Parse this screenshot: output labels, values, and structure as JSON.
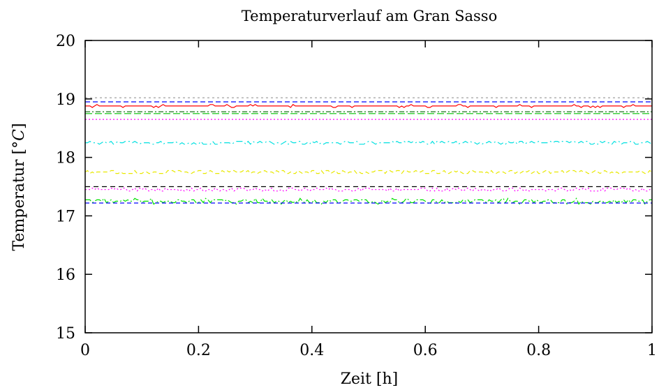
{
  "chart_data": {
    "type": "line",
    "title": "Temperaturverlauf am Gran Sasso",
    "xlabel": "Zeit [h]",
    "ylabel": "Temperatur [°C]",
    "ylabel_prefix": "Temperatur [°",
    "ylabel_unit": "C",
    "ylabel_suffix": "]",
    "xlim": [
      0,
      1
    ],
    "ylim": [
      15,
      20
    ],
    "xticks": [
      0,
      0.2,
      0.4,
      0.6,
      0.8,
      1
    ],
    "xtick_labels": [
      "0",
      "0.2",
      "0.4",
      "0.6",
      "0.8",
      "1"
    ],
    "yticks": [
      15,
      16,
      17,
      18,
      19,
      20
    ],
    "ytick_labels": [
      "15",
      "16",
      "17",
      "18",
      "19",
      "20"
    ],
    "grid": false,
    "legend": "none",
    "samples": 240,
    "series": [
      {
        "base": 19.02,
        "noise": 0.02,
        "color": "#a0a0a0",
        "dash": "3,4",
        "seed": 11
      },
      {
        "base": 18.95,
        "noise": 0.02,
        "color": "#0000ff",
        "dash": "7,4",
        "seed": 12
      },
      {
        "base": 18.88,
        "noise": 0.03,
        "color": "#ff0000",
        "dash": "",
        "seed": 13
      },
      {
        "base": 18.78,
        "noise": 0.02,
        "color": "#006400",
        "dash": "7,3,2,3",
        "seed": 14
      },
      {
        "base": 18.75,
        "noise": 0.02,
        "color": "#00c000",
        "dash": "10,4",
        "seed": 15
      },
      {
        "base": 18.65,
        "noise": 0.02,
        "color": "#ff00ff",
        "dash": "2,3",
        "seed": 16
      },
      {
        "base": 18.25,
        "noise": 0.05,
        "color": "#00e0e0",
        "dash": "9,4,2,4",
        "seed": 17
      },
      {
        "base": 17.75,
        "noise": 0.06,
        "color": "#e8e800",
        "dash": "6,4",
        "seed": 18
      },
      {
        "base": 17.5,
        "noise": 0.01,
        "color": "#000000",
        "dash": "7,5",
        "seed": 19
      },
      {
        "base": 17.45,
        "noise": 0.05,
        "color": "#ff00ff",
        "dash": "2,3",
        "seed": 20
      },
      {
        "base": 17.25,
        "noise": 0.08,
        "color": "#00e000",
        "dash": "9,3,2,3",
        "seed": 21
      },
      {
        "base": 17.22,
        "noise": 0.01,
        "color": "#0000ff",
        "dash": "6,4",
        "seed": 22
      }
    ]
  }
}
